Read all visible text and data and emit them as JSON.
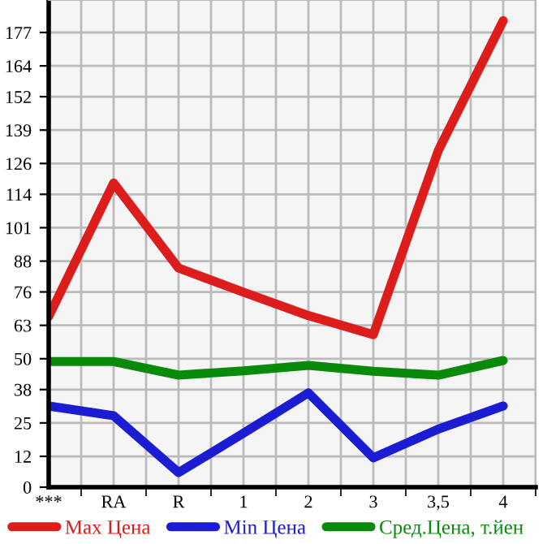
{
  "chart_data": {
    "type": "line",
    "categories": [
      "***",
      "RA",
      "R",
      "1",
      "2",
      "3",
      "3,5",
      "4"
    ],
    "series": [
      {
        "name": "Max Цена",
        "color": "#dd1c1c",
        "values": [
          66.4,
          118.4,
          85.3,
          75.9,
          66.8,
          59.4,
          131,
          181.6
        ]
      },
      {
        "name": "Min Цена",
        "color": "#1c1cd2",
        "values": [
          31.6,
          27.8,
          5.7,
          21,
          36.7,
          11.4,
          22.6,
          31.6
        ]
      },
      {
        "name": "Сред.Цена, т.йен",
        "color": "#0a8a0a",
        "values": [
          48.9,
          48.9,
          43.6,
          45.3,
          47.4,
          45.1,
          43.6,
          49.3
        ]
      }
    ],
    "ylim": [
      0,
      189.64
    ],
    "yticks": [
      0,
      12,
      25,
      38,
      50,
      63,
      76,
      88,
      101,
      114,
      126,
      139,
      152,
      164,
      177
    ],
    "grid": true,
    "legend": "bottom",
    "marker": "none",
    "line_style": "solid"
  }
}
